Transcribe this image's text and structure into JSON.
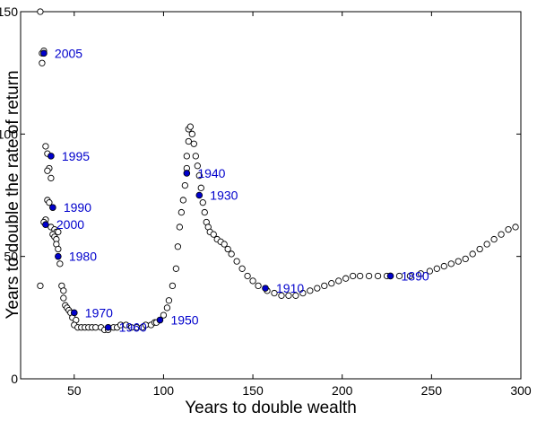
{
  "chart_data": {
    "type": "scatter",
    "xlabel": "Years to double wealth",
    "ylabel": "Years to double the rate of return",
    "xlim": [
      20,
      300
    ],
    "ylim": [
      0,
      150
    ],
    "xticks": [
      50,
      100,
      150,
      200,
      250,
      300
    ],
    "yticks": [
      0,
      50,
      100,
      150
    ],
    "grid": false,
    "colors": {
      "open_marker": "#000000",
      "highlight": "#0000cc",
      "label": "#0000cc"
    },
    "series": [
      {
        "marker": "open-circle",
        "points": [
          [
            31,
            150
          ],
          [
            32,
            133
          ],
          [
            33,
            134
          ],
          [
            32,
            129
          ],
          [
            34,
            95
          ],
          [
            35,
            92
          ],
          [
            36,
            86
          ],
          [
            35,
            85
          ],
          [
            37,
            82
          ],
          [
            35,
            73
          ],
          [
            36,
            72
          ],
          [
            38,
            70
          ],
          [
            34,
            65
          ],
          [
            33,
            64
          ],
          [
            37,
            62
          ],
          [
            39,
            61
          ],
          [
            40,
            60
          ],
          [
            41,
            60
          ],
          [
            38,
            59
          ],
          [
            39,
            58
          ],
          [
            40,
            57
          ],
          [
            40,
            55
          ],
          [
            41,
            53
          ],
          [
            42,
            47
          ],
          [
            43,
            38
          ],
          [
            44,
            36
          ],
          [
            44,
            33
          ],
          [
            45,
            30
          ],
          [
            46,
            29
          ],
          [
            47,
            28
          ],
          [
            48,
            27
          ],
          [
            50,
            27
          ],
          [
            49,
            25
          ],
          [
            51,
            24
          ],
          [
            50,
            22
          ],
          [
            52,
            21
          ],
          [
            54,
            21
          ],
          [
            56,
            21
          ],
          [
            58,
            21
          ],
          [
            60,
            21
          ],
          [
            62,
            21
          ],
          [
            65,
            21
          ],
          [
            67,
            20
          ],
          [
            69,
            20
          ],
          [
            72,
            21
          ],
          [
            74,
            21
          ],
          [
            76,
            22
          ],
          [
            79,
            22
          ],
          [
            82,
            21
          ],
          [
            85,
            21
          ],
          [
            88,
            21
          ],
          [
            90,
            22
          ],
          [
            93,
            22
          ],
          [
            95,
            23
          ],
          [
            96,
            23
          ],
          [
            31,
            38
          ],
          [
            100,
            26
          ],
          [
            102,
            29
          ],
          [
            103,
            32
          ],
          [
            105,
            38
          ],
          [
            107,
            45
          ],
          [
            108,
            54
          ],
          [
            109,
            62
          ],
          [
            110,
            68
          ],
          [
            111,
            73
          ],
          [
            112,
            79
          ],
          [
            113,
            86
          ],
          [
            113,
            91
          ],
          [
            114,
            97
          ],
          [
            114,
            102
          ],
          [
            115,
            103
          ],
          [
            116,
            100
          ],
          [
            117,
            96
          ],
          [
            118,
            91
          ],
          [
            119,
            87
          ],
          [
            120,
            83
          ],
          [
            121,
            78
          ],
          [
            122,
            72
          ],
          [
            123,
            68
          ],
          [
            124,
            64
          ],
          [
            125,
            62
          ],
          [
            126,
            60
          ],
          [
            128,
            59
          ],
          [
            130,
            57
          ],
          [
            132,
            56
          ],
          [
            134,
            55
          ],
          [
            136,
            53
          ],
          [
            138,
            51
          ],
          [
            141,
            48
          ],
          [
            144,
            45
          ],
          [
            147,
            42
          ],
          [
            150,
            40
          ],
          [
            153,
            38
          ],
          [
            158,
            36
          ],
          [
            162,
            35
          ],
          [
            166,
            34
          ],
          [
            170,
            34
          ],
          [
            174,
            34
          ],
          [
            178,
            35
          ],
          [
            182,
            36
          ],
          [
            186,
            37
          ],
          [
            190,
            38
          ],
          [
            194,
            39
          ],
          [
            198,
            40
          ],
          [
            202,
            41
          ],
          [
            206,
            42
          ],
          [
            210,
            42
          ],
          [
            215,
            42
          ],
          [
            220,
            42
          ],
          [
            225,
            42
          ],
          [
            232,
            42
          ],
          [
            238,
            42
          ],
          [
            244,
            43
          ],
          [
            249,
            44
          ],
          [
            253,
            45
          ],
          [
            257,
            46
          ],
          [
            261,
            47
          ],
          [
            265,
            48
          ],
          [
            269,
            49
          ],
          [
            273,
            51
          ],
          [
            277,
            53
          ],
          [
            281,
            55
          ],
          [
            285,
            57
          ],
          [
            289,
            59
          ],
          [
            293,
            61
          ],
          [
            297,
            62
          ]
        ]
      },
      {
        "marker": "filled-circle",
        "points": [
          {
            "x": 33,
            "y": 133,
            "label": "2005"
          },
          {
            "x": 37,
            "y": 91,
            "label": "1995"
          },
          {
            "x": 38,
            "y": 70,
            "label": "1990"
          },
          {
            "x": 34,
            "y": 63,
            "label": "2000"
          },
          {
            "x": 41,
            "y": 50,
            "label": "1980"
          },
          {
            "x": 50,
            "y": 27,
            "label": "1970"
          },
          {
            "x": 69,
            "y": 21,
            "label": "1960"
          },
          {
            "x": 98,
            "y": 24,
            "label": "1950"
          },
          {
            "x": 113,
            "y": 84,
            "label": "1940"
          },
          {
            "x": 120,
            "y": 75,
            "label": "1930"
          },
          {
            "x": 157,
            "y": 37,
            "label": "1910"
          },
          {
            "x": 227,
            "y": 42,
            "label": "1890"
          }
        ]
      }
    ]
  }
}
